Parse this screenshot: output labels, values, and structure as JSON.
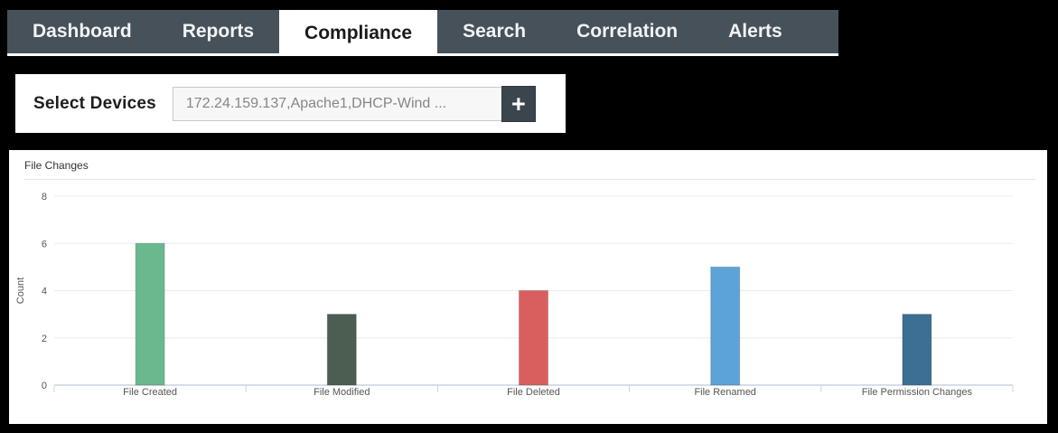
{
  "navbar": {
    "tabs": [
      {
        "label": "Dashboard",
        "active": false
      },
      {
        "label": "Reports",
        "active": false
      },
      {
        "label": "Compliance",
        "active": true
      },
      {
        "label": "Search",
        "active": false
      },
      {
        "label": "Correlation",
        "active": false
      },
      {
        "label": "Alerts",
        "active": false
      }
    ]
  },
  "device_selector": {
    "label": "Select Devices",
    "value": "172.24.159.137,Apache1,DHCP-Wind ...",
    "add_button_label": "+"
  },
  "chart_data": {
    "type": "bar",
    "title": "File Changes",
    "categories": [
      "File Created",
      "File Modified",
      "File Deleted",
      "File Renamed",
      "File Permission Changes"
    ],
    "values": [
      6,
      3,
      4,
      5,
      3
    ],
    "bar_colors": [
      "#6cb88e",
      "#4c5d52",
      "#d95f5f",
      "#5ca3d9",
      "#3d6e93"
    ],
    "xlabel": "",
    "ylabel": "Count",
    "ylim": [
      0,
      8
    ],
    "yticks": [
      0,
      2,
      4,
      6,
      8
    ],
    "grid": true,
    "legend": false
  },
  "colors": {
    "page_bg": "#000000",
    "nav_bg": "#47515a",
    "nav_text": "#f2f3f4",
    "nav_active_bg": "#ffffff",
    "nav_active_text": "#1b1b1b",
    "panel_bg": "#ffffff",
    "input_bg": "#f7f7f7",
    "input_border": "#c9c9c9",
    "input_text": "#868686",
    "add_button_bg": "#3a454e",
    "gridline": "#ececec",
    "axis_line": "#c9d4e2",
    "tick_text": "#555555"
  }
}
